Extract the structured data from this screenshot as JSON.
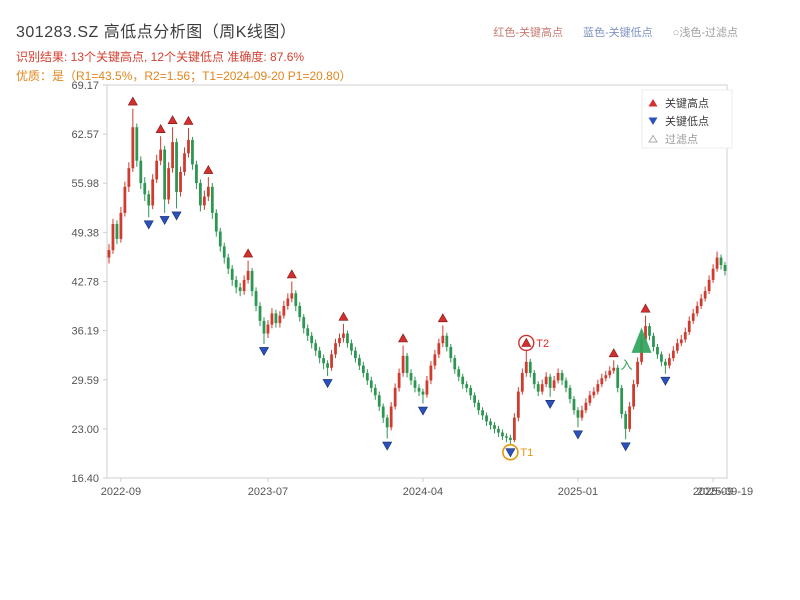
{
  "header": {
    "title": "301283.SZ 高低点分析图（周K线图）",
    "legend_top": [
      {
        "label": "红色-关键高点",
        "color": "#c97b72"
      },
      {
        "label": "蓝色-关键低点",
        "color": "#7f93c4"
      },
      {
        "label": "○浅色-过滤点",
        "color": "#9e9e9e"
      }
    ],
    "result_line": "识别结果: 13个关键高点, 12个关键低点  准确度: 87.6%",
    "result_color": "#d43f2f",
    "quality_line": "优质：是（R1=43.5%，R2=1.56；T1=2024-09-20 P1=20.80）",
    "quality_color": "#e0861c"
  },
  "chart_data": {
    "type": "candlestick",
    "timeframe": "weekly",
    "y_ticks": [
      "69.17",
      "62.57",
      "55.98",
      "49.38",
      "42.78",
      "36.19",
      "29.59",
      "23.00",
      "16.40"
    ],
    "y_range": [
      16.4,
      69.17
    ],
    "x_ticks": [
      {
        "label": "2022-09",
        "week": 3
      },
      {
        "label": "2023-07",
        "week": 40
      },
      {
        "label": "2024-04",
        "week": 79
      },
      {
        "label": "2025-01",
        "week": 118
      },
      {
        "label": "2025-09",
        "week": 152
      }
    ],
    "x_overlap_label": {
      "label": "2025-09-19",
      "week": 155
    },
    "colors": {
      "up": "#cf3b2e",
      "down": "#2e9653",
      "key_high": "#d32f2f",
      "key_high_edge": "#7e150e",
      "key_low": "#2a52be",
      "key_low_edge": "#152a66",
      "frame": "#cfcfcf",
      "axis_text": "#555555",
      "filtered": "#aaaaaa",
      "legend_text": "#3c3c3c"
    },
    "legend": {
      "items": [
        {
          "glyph": "up",
          "color": "#d32f2f",
          "label": "关键高点",
          "text_color": "#3c3c3c"
        },
        {
          "glyph": "down",
          "color": "#2a52be",
          "label": "关键低点",
          "text_color": "#3c3c3c"
        },
        {
          "glyph": "hollow-up",
          "color": "#aaaaaa",
          "label": "过滤点",
          "text_color": "#9a9a9a"
        }
      ]
    },
    "key_high_weeks": [
      6,
      13,
      16,
      20,
      25,
      35,
      46,
      59,
      74,
      84,
      105,
      127,
      135
    ],
    "key_low_weeks": [
      10,
      14,
      17,
      39,
      55,
      70,
      79,
      101,
      111,
      118,
      130,
      140
    ],
    "filtered_weeks": [],
    "annotations": {
      "t1": {
        "label": "T1",
        "week": 101,
        "color": "#e8960c"
      },
      "t2": {
        "label": "T2",
        "week": 105,
        "color": "#d32f2f"
      },
      "entry": {
        "label": "入",
        "week": 134,
        "price_top": 36.6,
        "price_bottom": 33.2,
        "color": "#2fa45c"
      }
    },
    "candles": [
      [
        46.0,
        47.8,
        45.2,
        47.0
      ],
      [
        47.0,
        51.2,
        46.5,
        50.5
      ],
      [
        50.5,
        51.0,
        47.8,
        48.5
      ],
      [
        48.5,
        52.8,
        48.0,
        52.0
      ],
      [
        52.0,
        56.2,
        51.5,
        55.5
      ],
      [
        55.5,
        58.8,
        54.8,
        58.0
      ],
      [
        58.0,
        66.0,
        57.5,
        63.5
      ],
      [
        63.5,
        64.0,
        58.2,
        59.0
      ],
      [
        59.0,
        59.6,
        55.2,
        56.0
      ],
      [
        56.0,
        56.8,
        53.6,
        54.5
      ],
      [
        54.5,
        55.0,
        51.4,
        53.0
      ],
      [
        53.0,
        57.2,
        52.5,
        56.5
      ],
      [
        56.5,
        59.8,
        56.0,
        59.0
      ],
      [
        59.0,
        62.3,
        58.4,
        60.5
      ],
      [
        60.5,
        61.0,
        52.0,
        53.8
      ],
      [
        53.8,
        58.8,
        53.2,
        58.0
      ],
      [
        58.0,
        63.5,
        57.4,
        61.5
      ],
      [
        61.5,
        62.0,
        52.6,
        54.8
      ],
      [
        54.8,
        58.2,
        54.2,
        57.5
      ],
      [
        57.5,
        60.8,
        57.0,
        60.0
      ],
      [
        60.0,
        63.4,
        59.4,
        61.8
      ],
      [
        61.8,
        62.2,
        57.8,
        58.5
      ],
      [
        58.5,
        59.0,
        55.2,
        56.0
      ],
      [
        56.0,
        56.5,
        52.2,
        53.0
      ],
      [
        53.0,
        55.0,
        52.4,
        54.2
      ],
      [
        54.2,
        56.8,
        53.6,
        55.5
      ],
      [
        55.5,
        56.0,
        51.2,
        52.0
      ],
      [
        52.0,
        52.5,
        48.8,
        49.5
      ],
      [
        49.5,
        50.0,
        46.8,
        47.5
      ],
      [
        47.5,
        48.0,
        45.2,
        46.0
      ],
      [
        46.0,
        46.5,
        43.8,
        44.5
      ],
      [
        44.5,
        45.0,
        42.2,
        43.0
      ],
      [
        43.0,
        43.5,
        41.2,
        42.0
      ],
      [
        42.0,
        42.6,
        40.8,
        41.5
      ],
      [
        41.5,
        43.6,
        41.0,
        43.0
      ],
      [
        43.0,
        45.6,
        42.5,
        44.2
      ],
      [
        44.2,
        44.6,
        40.8,
        41.5
      ],
      [
        41.5,
        42.0,
        38.8,
        39.5
      ],
      [
        39.5,
        40.0,
        36.8,
        37.5
      ],
      [
        37.5,
        38.0,
        34.4,
        35.8
      ],
      [
        35.8,
        37.6,
        35.2,
        37.0
      ],
      [
        37.0,
        39.2,
        36.5,
        38.5
      ],
      [
        38.5,
        39.0,
        36.6,
        37.2
      ],
      [
        37.2,
        38.8,
        36.6,
        38.2
      ],
      [
        38.2,
        40.2,
        37.8,
        39.5
      ],
      [
        39.5,
        41.2,
        39.0,
        40.5
      ],
      [
        40.5,
        42.8,
        40.0,
        41.2
      ],
      [
        41.2,
        41.6,
        38.8,
        39.5
      ],
      [
        39.5,
        40.0,
        37.4,
        38.0
      ],
      [
        38.0,
        38.4,
        35.8,
        36.5
      ],
      [
        36.5,
        37.0,
        34.8,
        35.5
      ],
      [
        35.5,
        36.0,
        33.8,
        34.5
      ],
      [
        34.5,
        35.0,
        32.8,
        33.5
      ],
      [
        33.5,
        34.0,
        31.8,
        32.5
      ],
      [
        32.5,
        33.0,
        31.0,
        31.8
      ],
      [
        31.8,
        32.2,
        30.1,
        31.2
      ],
      [
        31.2,
        33.6,
        30.8,
        33.0
      ],
      [
        33.0,
        35.1,
        32.5,
        34.5
      ],
      [
        34.5,
        35.8,
        34.0,
        35.2
      ],
      [
        35.2,
        37.1,
        34.6,
        35.8
      ],
      [
        35.8,
        36.2,
        33.9,
        34.5
      ],
      [
        34.5,
        35.0,
        32.9,
        33.5
      ],
      [
        33.5,
        34.0,
        31.9,
        32.5
      ],
      [
        32.5,
        33.0,
        30.9,
        31.5
      ],
      [
        31.5,
        32.0,
        29.9,
        30.5
      ],
      [
        30.5,
        31.0,
        28.9,
        29.5
      ],
      [
        29.5,
        30.0,
        27.9,
        28.5
      ],
      [
        28.5,
        29.0,
        26.9,
        27.5
      ],
      [
        27.5,
        28.0,
        25.4,
        26.0
      ],
      [
        26.0,
        26.4,
        23.8,
        24.5
      ],
      [
        24.5,
        24.9,
        21.7,
        23.2
      ],
      [
        23.2,
        26.6,
        22.8,
        26.0
      ],
      [
        26.0,
        29.1,
        25.6,
        28.5
      ],
      [
        28.5,
        31.1,
        28.0,
        30.5
      ],
      [
        30.5,
        34.2,
        30.0,
        32.8
      ],
      [
        32.8,
        33.2,
        29.9,
        30.5
      ],
      [
        30.5,
        31.0,
        28.9,
        29.5
      ],
      [
        29.5,
        30.0,
        27.9,
        28.5
      ],
      [
        28.5,
        29.0,
        27.4,
        28.0
      ],
      [
        28.0,
        28.4,
        26.4,
        27.6
      ],
      [
        27.6,
        30.1,
        27.2,
        29.5
      ],
      [
        29.5,
        32.1,
        29.0,
        31.5
      ],
      [
        31.5,
        33.6,
        31.0,
        33.0
      ],
      [
        33.0,
        35.1,
        32.5,
        34.5
      ],
      [
        34.5,
        36.9,
        34.0,
        35.5
      ],
      [
        35.5,
        35.9,
        33.4,
        34.0
      ],
      [
        34.0,
        34.4,
        31.9,
        32.5
      ],
      [
        32.5,
        32.9,
        30.4,
        31.0
      ],
      [
        31.0,
        31.4,
        29.4,
        30.0
      ],
      [
        30.0,
        30.4,
        28.4,
        29.0
      ],
      [
        29.0,
        29.4,
        27.9,
        28.5
      ],
      [
        28.5,
        28.9,
        26.9,
        27.5
      ],
      [
        27.5,
        27.9,
        25.9,
        26.5
      ],
      [
        26.5,
        26.9,
        24.9,
        25.5
      ],
      [
        25.5,
        25.9,
        24.2,
        24.8
      ],
      [
        24.8,
        25.2,
        23.4,
        24.0
      ],
      [
        24.0,
        24.4,
        22.9,
        23.5
      ],
      [
        23.5,
        23.9,
        22.4,
        23.0
      ],
      [
        23.0,
        23.4,
        21.9,
        22.5
      ],
      [
        22.5,
        22.9,
        21.5,
        22.0
      ],
      [
        22.0,
        22.4,
        21.2,
        21.8
      ],
      [
        21.8,
        22.2,
        20.8,
        21.5
      ],
      [
        21.5,
        25.1,
        21.2,
        24.5
      ],
      [
        24.5,
        28.6,
        24.0,
        28.0
      ],
      [
        28.0,
        31.1,
        27.6,
        30.5
      ],
      [
        30.5,
        33.6,
        30.0,
        32.0
      ],
      [
        32.0,
        32.4,
        29.9,
        30.5
      ],
      [
        30.5,
        30.9,
        28.4,
        29.0
      ],
      [
        29.0,
        29.4,
        27.4,
        28.0
      ],
      [
        28.0,
        29.6,
        27.6,
        29.0
      ],
      [
        29.0,
        30.6,
        28.6,
        30.0
      ],
      [
        30.0,
        30.4,
        27.3,
        28.5
      ],
      [
        28.5,
        30.1,
        28.1,
        29.5
      ],
      [
        29.5,
        31.1,
        29.1,
        30.5
      ],
      [
        30.5,
        30.9,
        28.9,
        29.5
      ],
      [
        29.5,
        29.9,
        27.9,
        28.5
      ],
      [
        28.5,
        28.9,
        26.4,
        27.0
      ],
      [
        27.0,
        27.4,
        24.9,
        25.5
      ],
      [
        25.5,
        25.9,
        23.2,
        24.5
      ],
      [
        24.5,
        26.1,
        24.1,
        25.5
      ],
      [
        25.5,
        27.1,
        25.1,
        26.5
      ],
      [
        26.5,
        28.1,
        26.1,
        27.5
      ],
      [
        27.5,
        28.6,
        27.1,
        28.0
      ],
      [
        28.0,
        29.6,
        27.6,
        29.0
      ],
      [
        29.0,
        30.4,
        28.6,
        29.8
      ],
      [
        29.8,
        30.8,
        29.4,
        30.2
      ],
      [
        30.2,
        31.4,
        29.8,
        30.8
      ],
      [
        30.8,
        32.2,
        30.4,
        31.2
      ],
      [
        31.2,
        31.6,
        27.9,
        28.5
      ],
      [
        28.5,
        28.9,
        24.4,
        25.0
      ],
      [
        25.0,
        25.4,
        21.6,
        23.0
      ],
      [
        23.0,
        26.6,
        22.6,
        26.0
      ],
      [
        26.0,
        29.6,
        25.6,
        29.0
      ],
      [
        29.0,
        32.6,
        28.6,
        32.0
      ],
      [
        32.0,
        35.6,
        31.6,
        35.0
      ],
      [
        35.0,
        38.2,
        34.6,
        36.8
      ],
      [
        36.8,
        37.2,
        34.9,
        35.5
      ],
      [
        35.5,
        35.9,
        33.4,
        34.0
      ],
      [
        34.0,
        34.4,
        32.4,
        33.0
      ],
      [
        33.0,
        33.4,
        31.4,
        32.0
      ],
      [
        32.0,
        32.4,
        30.4,
        31.5
      ],
      [
        31.5,
        33.1,
        31.1,
        32.5
      ],
      [
        32.5,
        34.1,
        32.1,
        33.5
      ],
      [
        33.5,
        35.1,
        33.1,
        34.5
      ],
      [
        34.5,
        35.6,
        34.1,
        35.0
      ],
      [
        35.0,
        36.6,
        34.6,
        36.0
      ],
      [
        36.0,
        38.1,
        35.6,
        37.5
      ],
      [
        37.5,
        39.1,
        37.1,
        38.5
      ],
      [
        38.5,
        40.1,
        38.1,
        39.5
      ],
      [
        39.5,
        41.1,
        39.1,
        40.5
      ],
      [
        40.5,
        42.1,
        40.1,
        41.5
      ],
      [
        41.5,
        43.6,
        41.1,
        43.0
      ],
      [
        43.0,
        45.1,
        42.6,
        44.5
      ],
      [
        44.5,
        46.8,
        44.1,
        46.0
      ],
      [
        46.0,
        46.4,
        44.4,
        45.0
      ],
      [
        45.0,
        45.4,
        43.6,
        44.2
      ]
    ]
  }
}
